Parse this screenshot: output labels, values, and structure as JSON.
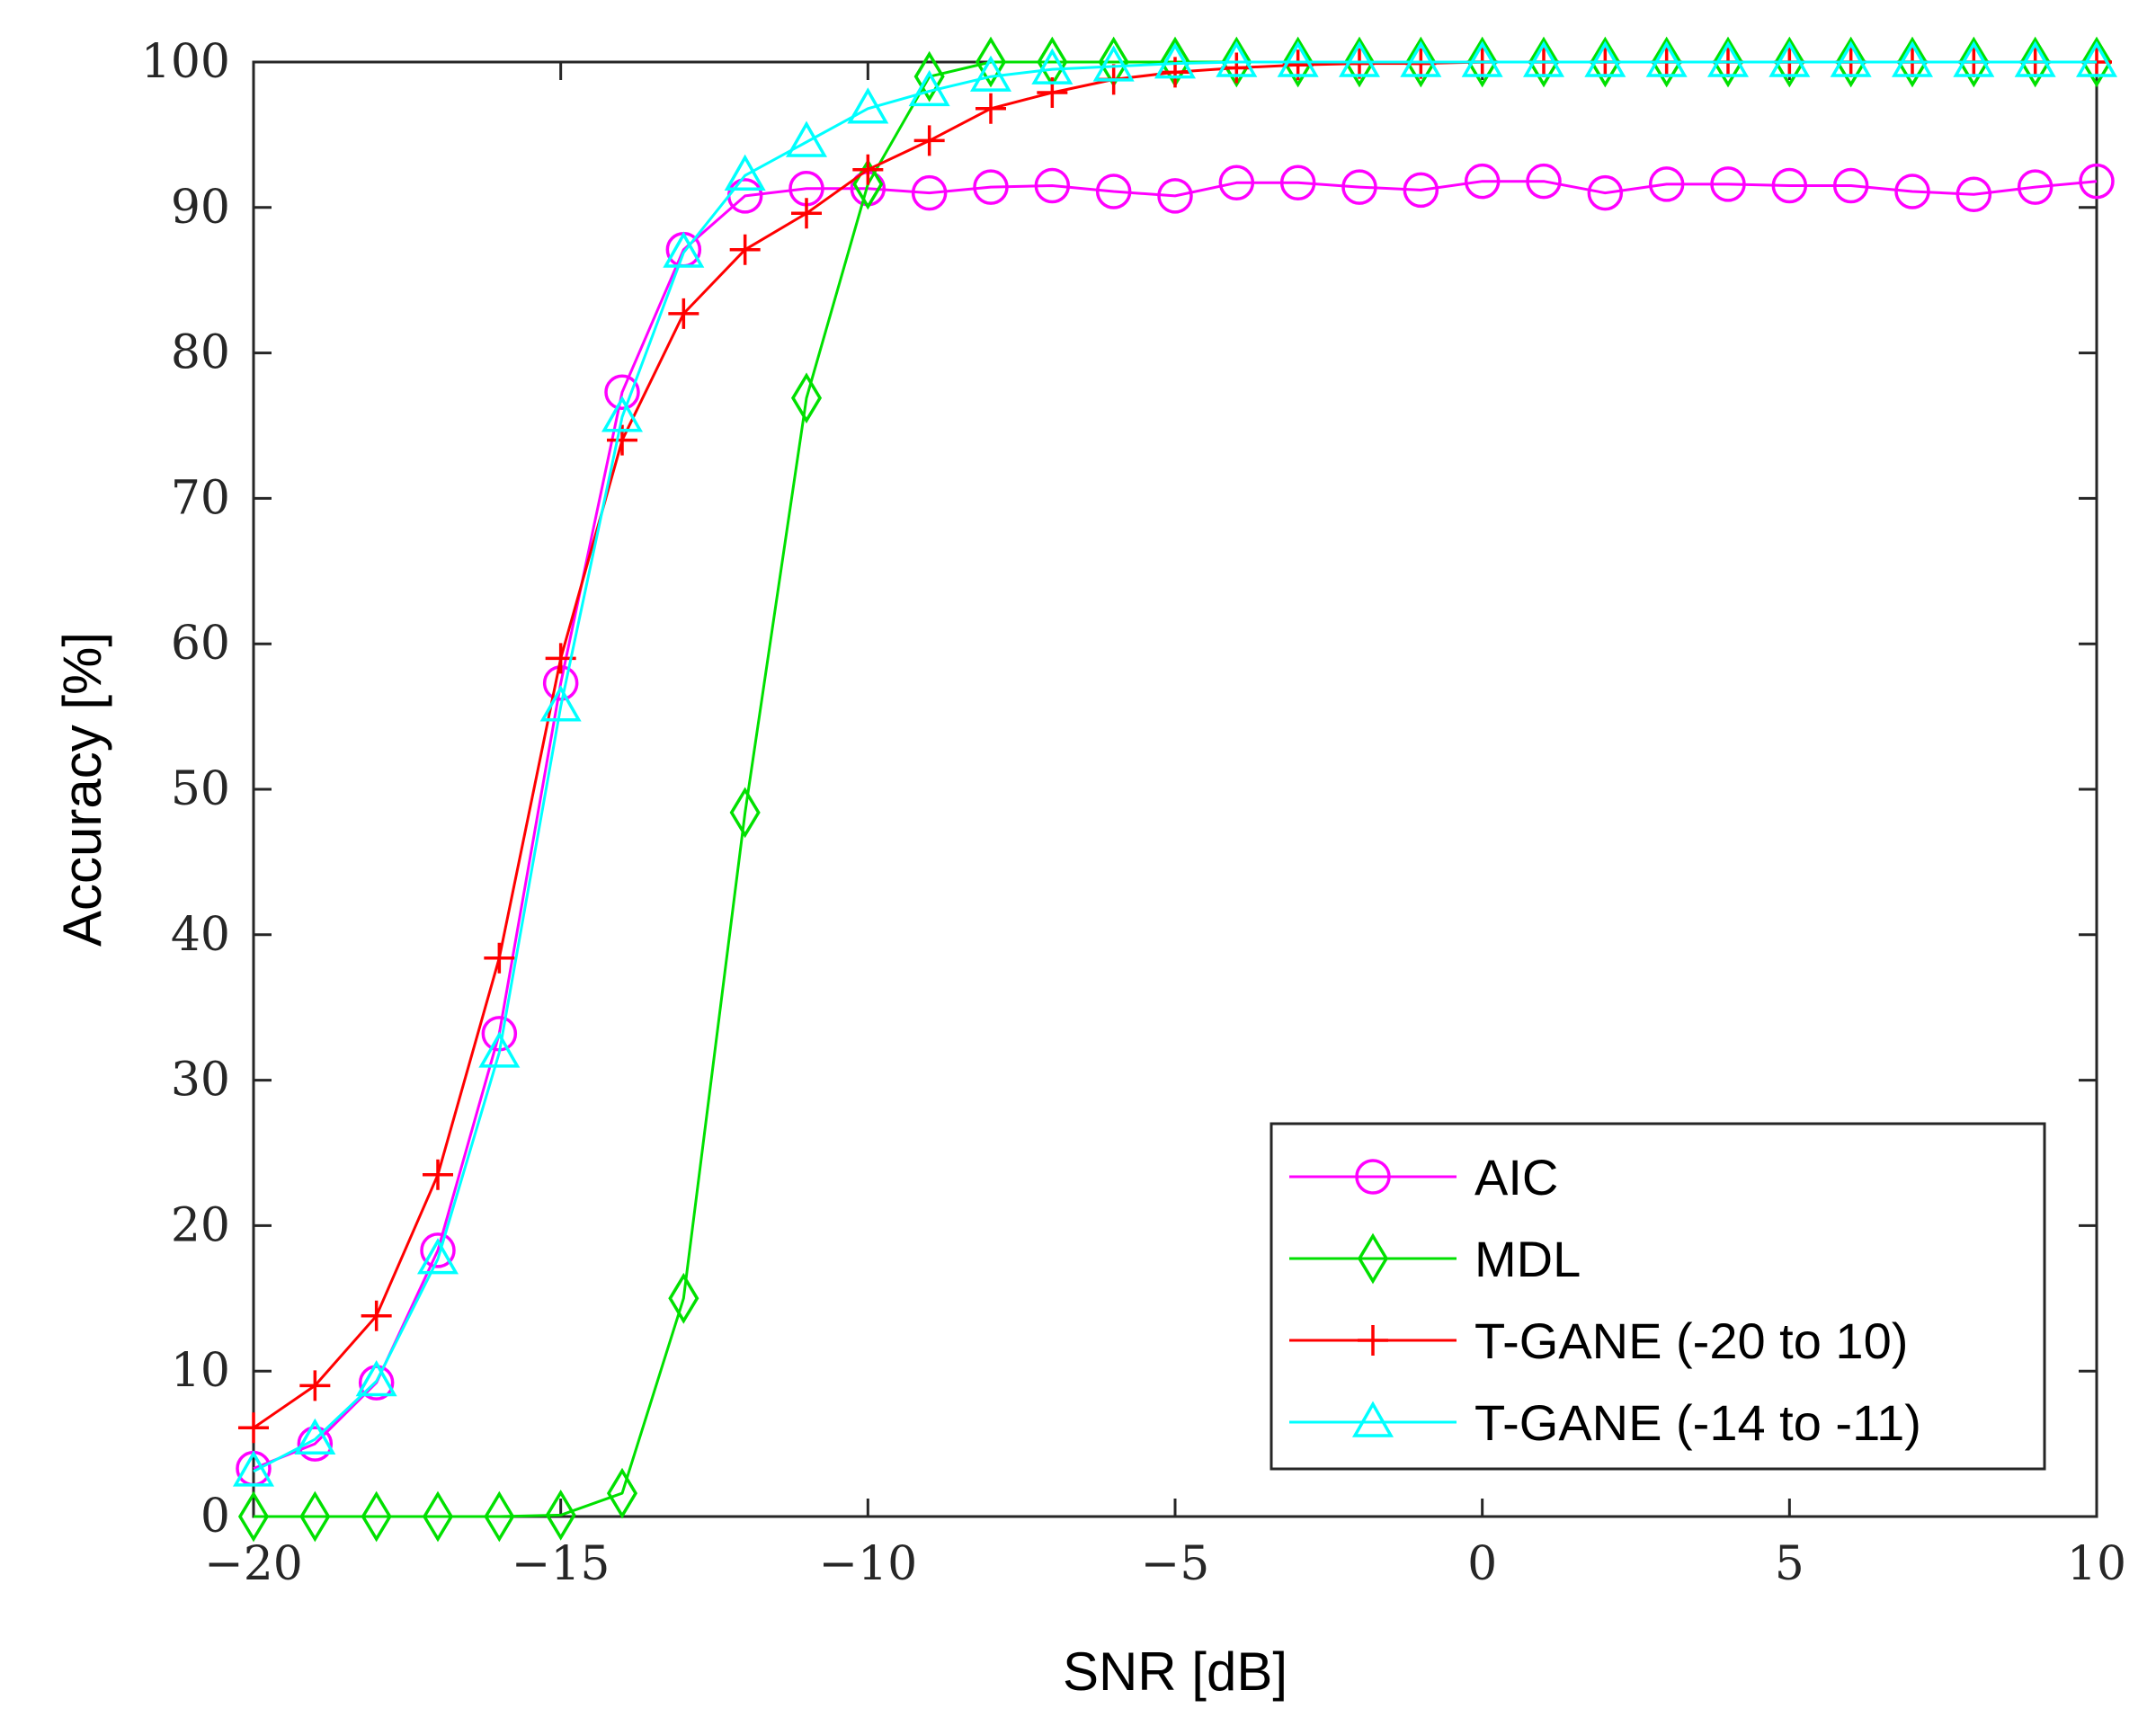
{
  "chart_data": {
    "type": "line",
    "title": "",
    "xlabel": "SNR [dB]",
    "ylabel": "Accuracy [%]",
    "xlim": [
      -20,
      10
    ],
    "ylim": [
      0,
      100
    ],
    "xticks": [
      -20,
      -15,
      -10,
      -5,
      0,
      5,
      10
    ],
    "xtick_labels": [
      "−20",
      "−15",
      "−10",
      "−5",
      "0",
      "5",
      "10"
    ],
    "yticks": [
      0,
      10,
      20,
      30,
      40,
      50,
      60,
      70,
      80,
      90,
      100
    ],
    "ytick_labels": [
      "0",
      "10",
      "20",
      "30",
      "40",
      "50",
      "60",
      "70",
      "80",
      "90",
      "100"
    ],
    "grid": false,
    "legend_position": "bottom-right",
    "x": [
      -20,
      -19,
      -18,
      -17,
      -16,
      -15,
      -14,
      -13,
      -12,
      -11,
      -10,
      -9,
      -8,
      -7,
      -6,
      -5,
      -4,
      -3,
      -2,
      -1,
      0,
      1,
      2,
      3,
      4,
      5,
      6,
      7,
      8,
      9,
      10
    ],
    "series": [
      {
        "name": "AIC",
        "color": "#ff00ff",
        "marker": "circle",
        "values": [
          3.3,
          5.0,
          9.2,
          18.3,
          33.2,
          57.3,
          77.3,
          87.1,
          90.8,
          91.3,
          91.3,
          91.0,
          91.4,
          91.5,
          91.1,
          90.8,
          91.7,
          91.7,
          91.4,
          91.2,
          91.8,
          91.8,
          91.0,
          91.6,
          91.6,
          91.5,
          91.5,
          91.1,
          90.9,
          91.4,
          91.8
        ]
      },
      {
        "name": "MDL",
        "color": "#00e000",
        "marker": "diamond",
        "values": [
          0,
          0,
          0,
          0,
          0,
          0.1,
          1.6,
          15.0,
          48.4,
          76.9,
          91.6,
          99.0,
          100,
          100,
          100,
          100,
          100,
          100,
          100,
          100,
          100,
          100,
          100,
          100,
          100,
          100,
          100,
          100,
          100,
          100,
          100
        ]
      },
      {
        "name": "T-GANE (-20 to 10)",
        "color": "#ff0000",
        "marker": "plus",
        "values": [
          6.1,
          9.0,
          13.8,
          23.5,
          38.4,
          59.0,
          74.0,
          82.7,
          87.1,
          89.6,
          92.6,
          94.6,
          96.8,
          97.9,
          98.8,
          99.3,
          99.6,
          99.8,
          99.9,
          99.9,
          100,
          100,
          100,
          100,
          100,
          100,
          100,
          100,
          100,
          100,
          100
        ]
      },
      {
        "name": "T-GANE (-14 to -11)",
        "color": "#00ffff",
        "marker": "triangle",
        "values": [
          3.1,
          5.3,
          9.3,
          17.7,
          31.9,
          55.7,
          75.6,
          86.9,
          92.2,
          94.5,
          96.8,
          98.0,
          99.0,
          99.5,
          99.7,
          99.9,
          100,
          100,
          100,
          100,
          100,
          100,
          100,
          100,
          100,
          100,
          100,
          100,
          100,
          100,
          100
        ]
      }
    ]
  }
}
